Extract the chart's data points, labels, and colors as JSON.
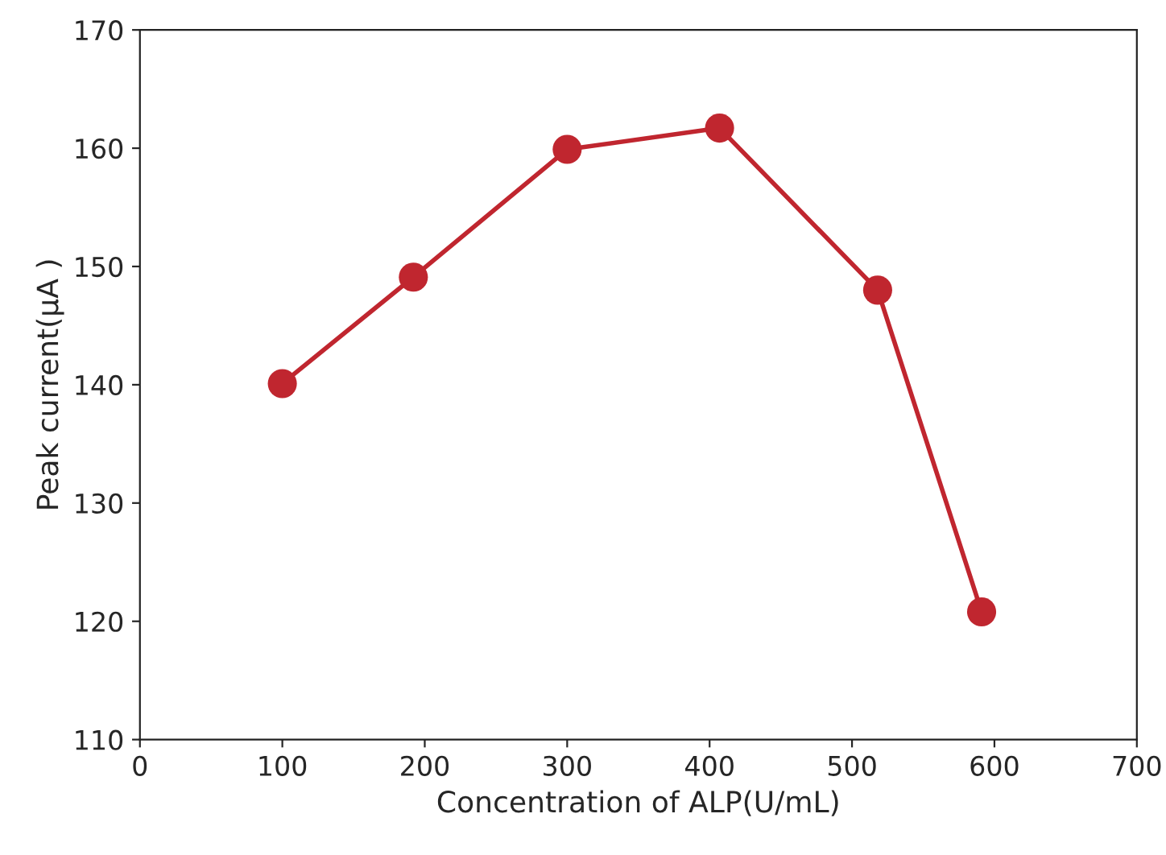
{
  "chart_data": {
    "type": "line",
    "xlabel": "Concentration of ALP(U/mL)",
    "ylabel": "Peak current(μA )",
    "x": [
      100,
      192,
      300,
      407,
      518,
      591
    ],
    "series": [
      {
        "color": "#c0262f",
        "values": [
          140.1,
          149.1,
          159.9,
          161.7,
          148.0,
          120.8
        ]
      }
    ],
    "xlim": [
      0,
      700
    ],
    "xticks": [
      0,
      100,
      200,
      300,
      400,
      500,
      600,
      700
    ],
    "ylim": [
      110,
      170
    ],
    "yticks": [
      110,
      120,
      130,
      140,
      150,
      160,
      170
    ],
    "grid": false,
    "marker": "circle",
    "line_style": "solid"
  }
}
